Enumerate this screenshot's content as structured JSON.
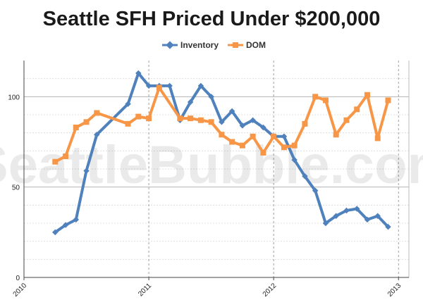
{
  "chart_data": {
    "type": "line",
    "title": "Seattle SFH Priced Under $200,000",
    "watermark": "SeattleBubble.com",
    "xlabel": "",
    "ylabel": "",
    "xlim": [
      "2010-01",
      "2013-02"
    ],
    "ylim": [
      0,
      120
    ],
    "yticks": [
      0,
      50,
      100
    ],
    "xticks": [
      "2010",
      "2011",
      "2012",
      "2013"
    ],
    "grid": "y-major solid, y-minor dotted, x dashed at year marks",
    "legend_position": "top",
    "x": [
      "2010-04",
      "2010-05",
      "2010-06",
      "2010-07",
      "2010-08",
      "2010-09",
      "2010-10",
      "2010-11",
      "2010-12",
      "2011-01",
      "2011-02",
      "2011-03",
      "2011-04",
      "2011-05",
      "2011-06",
      "2011-07",
      "2011-08",
      "2011-09",
      "2011-10",
      "2011-11",
      "2011-12",
      "2012-01",
      "2012-02",
      "2012-03",
      "2012-04",
      "2012-05",
      "2012-06",
      "2012-07",
      "2012-08",
      "2012-09",
      "2012-10",
      "2012-11",
      "2012-12",
      "2013-01"
    ],
    "series": [
      {
        "name": "Inventory",
        "color": "#4f81bd",
        "style": "solid line, diamond markers",
        "values": [
          25,
          29,
          32,
          59,
          79,
          null,
          null,
          96,
          113,
          106,
          106,
          106,
          87,
          97,
          106,
          100,
          86,
          92,
          84,
          87,
          83,
          78,
          78,
          65,
          56,
          48,
          30,
          34,
          37,
          38,
          32,
          34,
          28,
          null
        ]
      },
      {
        "name": "DOM",
        "color": "#f79646",
        "style": "solid line, square markers",
        "values": [
          64,
          67,
          83,
          86,
          91,
          null,
          null,
          85,
          89,
          88,
          105,
          null,
          88,
          88,
          87,
          86,
          79,
          75,
          73,
          78,
          69,
          78,
          72,
          73,
          85,
          100,
          98,
          79,
          87,
          93,
          101,
          77,
          98,
          null
        ]
      }
    ]
  }
}
